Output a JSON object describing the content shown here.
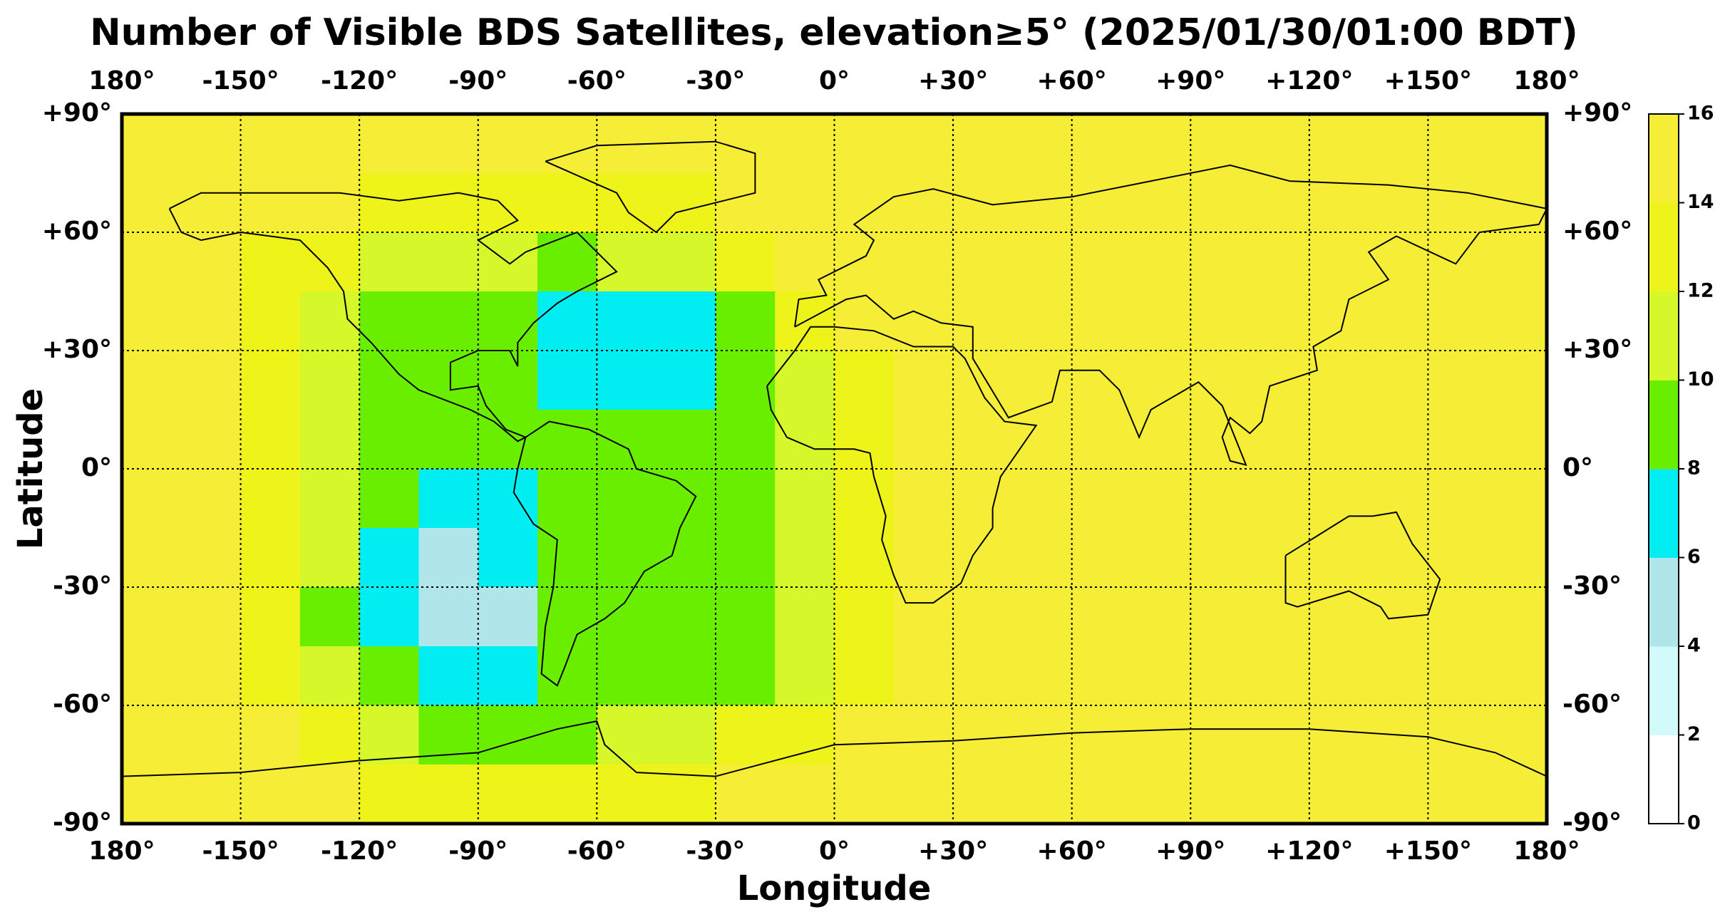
{
  "chart_data": {
    "type": "heatmap",
    "title": "Number of Visible BDS Satellites, elevation≥5° (2025/01/30/01:00 BDT)",
    "xlabel": "Longitude",
    "ylabel": "Latitude",
    "xlim": [
      -180,
      180
    ],
    "ylim": [
      -90,
      90
    ],
    "xticks": [
      {
        "value": -180,
        "label": "180°"
      },
      {
        "value": -150,
        "label": "-150°"
      },
      {
        "value": -120,
        "label": "-120°"
      },
      {
        "value": -90,
        "label": "-90°"
      },
      {
        "value": -60,
        "label": "-60°"
      },
      {
        "value": -30,
        "label": "-30°"
      },
      {
        "value": 0,
        "label": "0°"
      },
      {
        "value": 30,
        "label": "+30°"
      },
      {
        "value": 60,
        "label": "+60°"
      },
      {
        "value": 90,
        "label": "+90°"
      },
      {
        "value": 120,
        "label": "+120°"
      },
      {
        "value": 150,
        "label": "+150°"
      },
      {
        "value": 180,
        "label": "180°"
      }
    ],
    "yticks": [
      {
        "value": 90,
        "label": "+90°"
      },
      {
        "value": 60,
        "label": "+60°"
      },
      {
        "value": 30,
        "label": "+30°"
      },
      {
        "value": 0,
        "label": "0°"
      },
      {
        "value": -30,
        "label": "-30°"
      },
      {
        "value": -60,
        "label": "-60°"
      },
      {
        "value": -90,
        "label": "-90°"
      }
    ],
    "grid": true,
    "x": [
      -172.5,
      -157.5,
      -142.5,
      -127.5,
      -112.5,
      -97.5,
      -82.5,
      -67.5,
      -52.5,
      -37.5,
      -22.5,
      -7.5,
      7.5,
      22.5,
      37.5,
      52.5,
      67.5,
      82.5,
      97.5,
      112.5,
      127.5,
      142.5,
      157.5,
      172.5
    ],
    "y": [
      82.5,
      67.5,
      52.5,
      37.5,
      22.5,
      7.5,
      -7.5,
      -22.5,
      -37.5,
      -52.5,
      -67.5,
      -82.5
    ],
    "z": [
      [
        15,
        15,
        14,
        14,
        14,
        14,
        14,
        14,
        14,
        14,
        15,
        15,
        15,
        15,
        15,
        15,
        15,
        15,
        15,
        15,
        15,
        15,
        15,
        15
      ],
      [
        15,
        15,
        14,
        14,
        13,
        13,
        13,
        13,
        13,
        13,
        14,
        15,
        15,
        15,
        15,
        15,
        15,
        15,
        15,
        15,
        15,
        15,
        15,
        15
      ],
      [
        15,
        15,
        13,
        12,
        11,
        11,
        10,
        9,
        10,
        11,
        12,
        14,
        15,
        15,
        15,
        15,
        15,
        15,
        15,
        15,
        15,
        15,
        15,
        15
      ],
      [
        15,
        14,
        12,
        11,
        9,
        9,
        9,
        7,
        7,
        7,
        9,
        12,
        14,
        15,
        15,
        15,
        15,
        15,
        15,
        15,
        15,
        15,
        15,
        15
      ],
      [
        15,
        14,
        12,
        10,
        9,
        9,
        9,
        7,
        7,
        7,
        9,
        11,
        13,
        15,
        15,
        15,
        15,
        15,
        15,
        15,
        15,
        15,
        15,
        15
      ],
      [
        15,
        14,
        12,
        10,
        9,
        9,
        9,
        9,
        9,
        9,
        9,
        10,
        12,
        14,
        15,
        15,
        15,
        15,
        15,
        15,
        15,
        15,
        15,
        15
      ],
      [
        15,
        14,
        12,
        10,
        9,
        7,
        7,
        9,
        9,
        9,
        9,
        10,
        12,
        14,
        15,
        15,
        15,
        15,
        15,
        15,
        15,
        15,
        15,
        15
      ],
      [
        15,
        14,
        12,
        10,
        7,
        5,
        7,
        9,
        9,
        9,
        9,
        10,
        12,
        14,
        15,
        15,
        15,
        15,
        15,
        15,
        15,
        15,
        15,
        15
      ],
      [
        15,
        14,
        12,
        9,
        7,
        5,
        5,
        9,
        9,
        9,
        9,
        10,
        13,
        15,
        15,
        15,
        15,
        15,
        15,
        15,
        15,
        15,
        15,
        15
      ],
      [
        15,
        14,
        12,
        11,
        9,
        7,
        7,
        9,
        9,
        9,
        9,
        11,
        13,
        15,
        15,
        15,
        15,
        15,
        15,
        15,
        15,
        15,
        15,
        15
      ],
      [
        15,
        15,
        14,
        12,
        11,
        9,
        9,
        9,
        11,
        11,
        12,
        13,
        14,
        15,
        15,
        15,
        15,
        15,
        15,
        15,
        15,
        15,
        15,
        15
      ],
      [
        15,
        15,
        15,
        14,
        13,
        13,
        13,
        13,
        13,
        13,
        14,
        15,
        15,
        15,
        15,
        15,
        15,
        15,
        15,
        15,
        15,
        15,
        15,
        15
      ]
    ],
    "levels": [
      0,
      2,
      4,
      6,
      8,
      10,
      12,
      14,
      16
    ],
    "colors": [
      "#ffffff",
      "#d2fafa",
      "#b0e6ea",
      "#00eef2",
      "#6aee00",
      "#d6f82a",
      "#eef41a",
      "#f6ee36"
    ]
  }
}
